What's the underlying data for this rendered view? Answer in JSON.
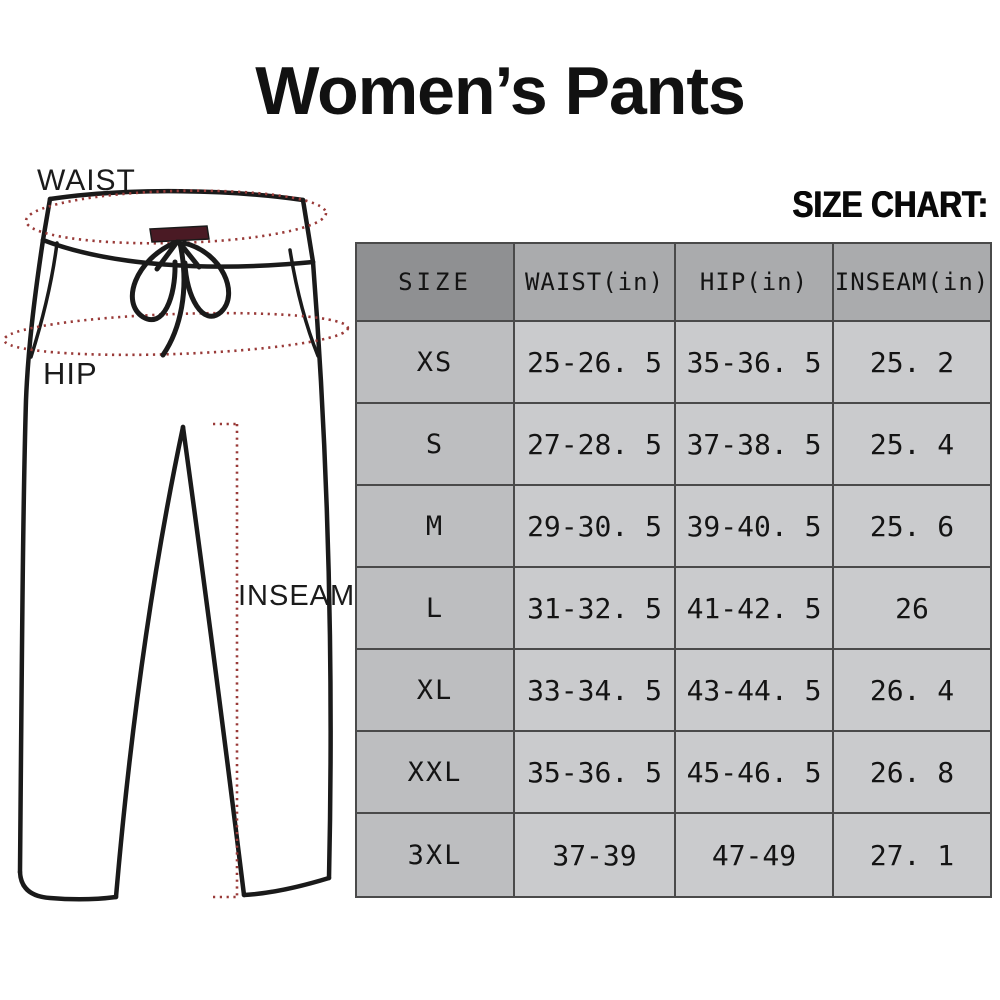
{
  "title": "Women’s Pants",
  "size_chart": {
    "heading": "SIZE CHART:"
  },
  "diagram": {
    "waist_label": "WAIST",
    "hip_label": "HIP",
    "inseam_label": "INSEAM",
    "colors": {
      "outline": "#1a1a1a",
      "measure_line": "#993a38",
      "drawstring_bar": "#4a1a24"
    }
  },
  "chart_data": {
    "type": "table",
    "title": "SIZE CHART:",
    "columns": [
      "SIZE",
      "WAIST(in)",
      "HIP(in)",
      "INSEAM(in)"
    ],
    "rows": [
      [
        "XS",
        "25-26. 5",
        "35-36. 5",
        "25. 2"
      ],
      [
        "S",
        "27-28. 5",
        "37-38. 5",
        "25. 4"
      ],
      [
        "M",
        "29-30. 5",
        "39-40. 5",
        "25. 6"
      ],
      [
        "L",
        "31-32. 5",
        "41-42. 5",
        "26"
      ],
      [
        "XL",
        "33-34. 5",
        "43-44. 5",
        "26. 4"
      ],
      [
        "XXL",
        "35-36. 5",
        "45-46. 5",
        "26. 8"
      ],
      [
        "3XL",
        "37-39",
        "47-49",
        "27. 1"
      ]
    ]
  },
  "table_style": {
    "header_size_bg": "#8f9092",
    "header_bg": "#aaabad",
    "size_col_bg": "#bdbec0",
    "cell_bg": "#cacbcd",
    "border": "#4a4a4a"
  }
}
